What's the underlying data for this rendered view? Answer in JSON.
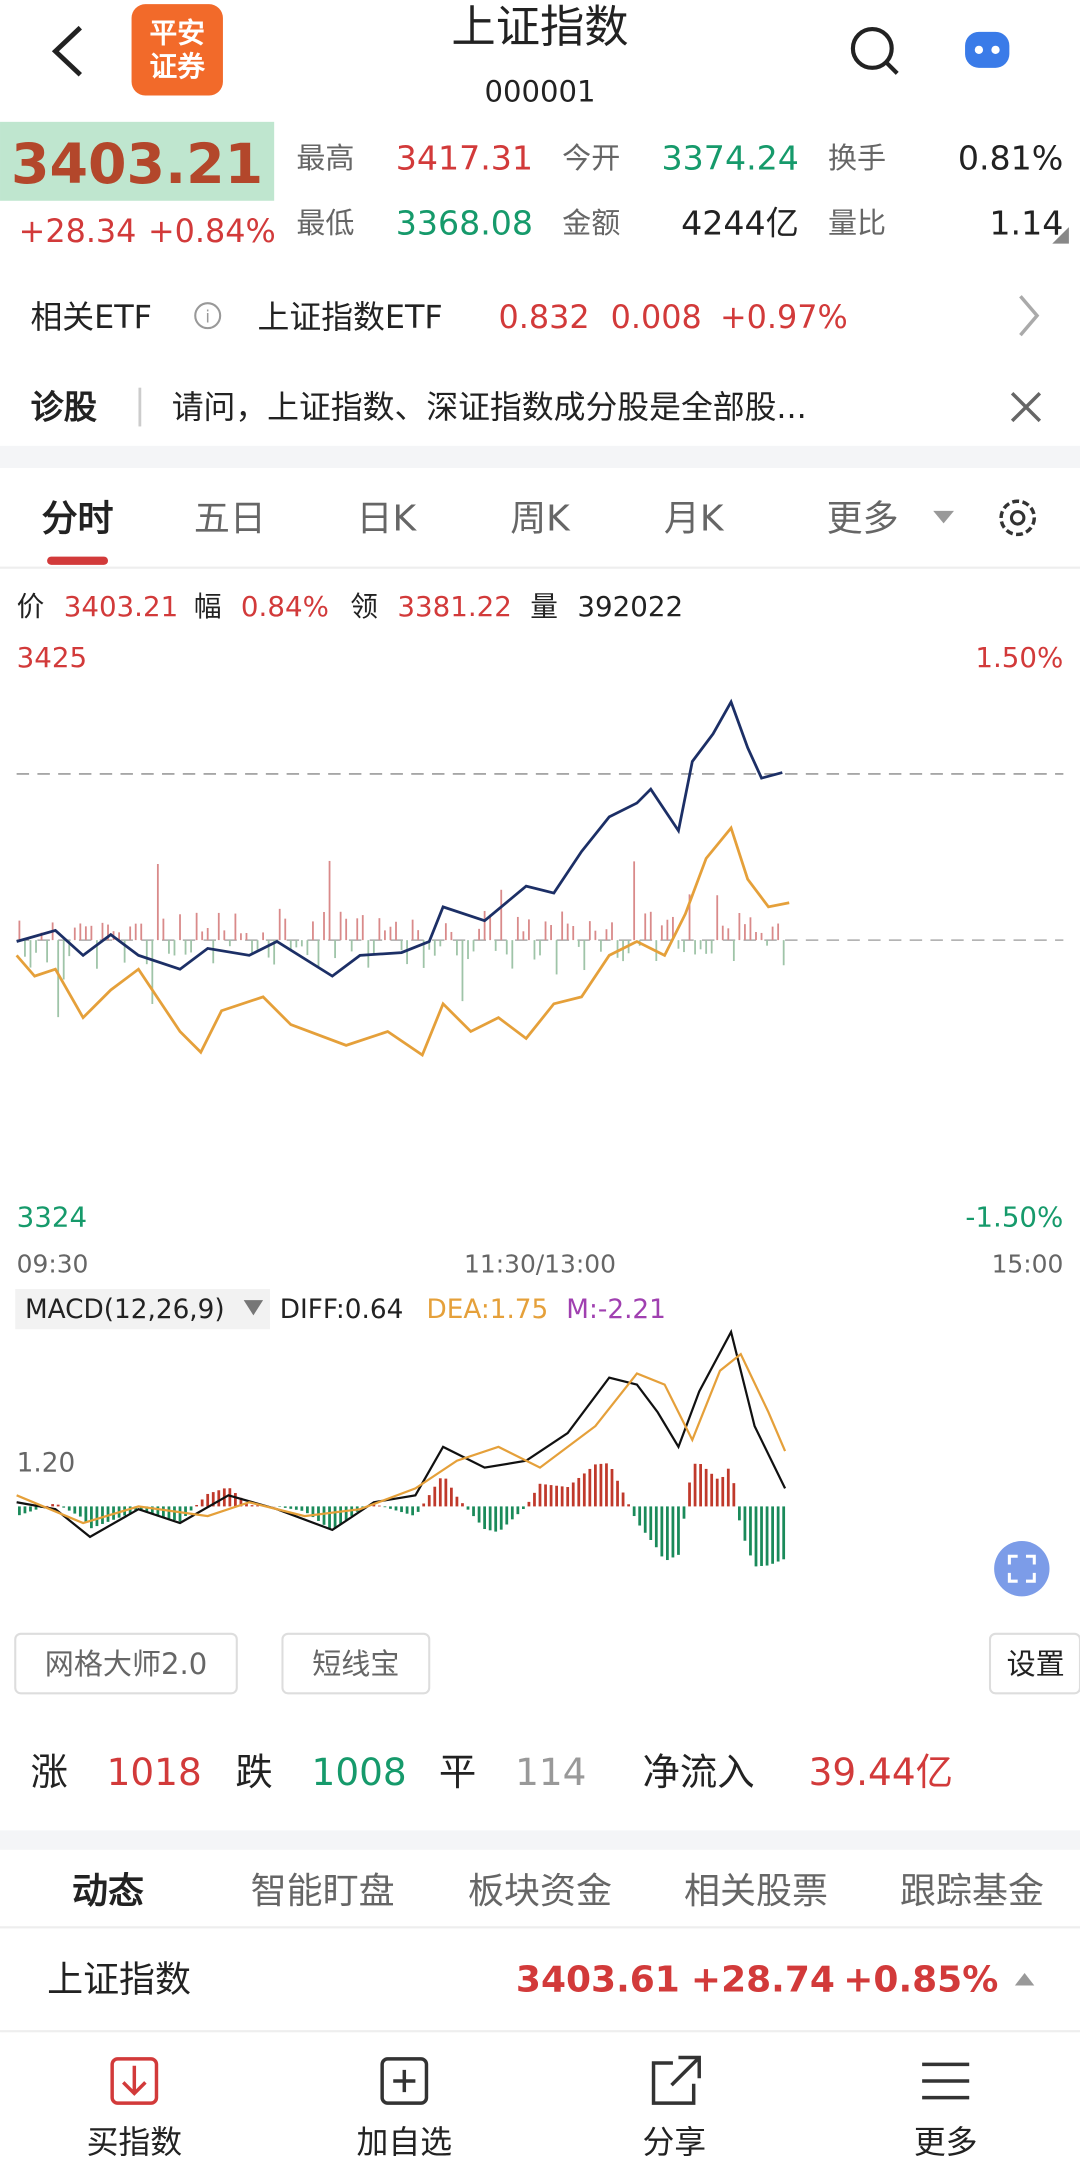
{
  "header": {
    "title": "上证指数",
    "code": "000001",
    "logo": [
      "平安",
      "证券"
    ]
  },
  "quote": {
    "price": "3403.21",
    "change": "+28.34",
    "change_pct": "+0.84%",
    "stats": [
      {
        "label": "最高",
        "value": "3417.31"
      },
      {
        "label": "今开",
        "value": "3374.24"
      },
      {
        "label": "换手",
        "value": "0.81%"
      },
      {
        "label": "最低",
        "value": "3368.08"
      },
      {
        "label": "金额",
        "value": "4244亿"
      },
      {
        "label": "量比",
        "value": "1.14"
      }
    ]
  },
  "etf": {
    "label": "相关ETF",
    "name": "上证指数ETF",
    "price": "0.832",
    "change": "0.008",
    "change_pct": "+0.97%"
  },
  "diagnosis": {
    "label": "诊股",
    "question": "请问，上证指数、深证指数成分股是全部股..."
  },
  "tabs": [
    "分时",
    "五日",
    "日K",
    "周K",
    "月K",
    "更多"
  ],
  "info": [
    {
      "label": "价",
      "value": "3403.21"
    },
    {
      "label": "幅",
      "value": "0.84%"
    },
    {
      "label": "领",
      "value": "3381.22"
    },
    {
      "label": "量",
      "value": "392022"
    }
  ],
  "chart": {
    "y_top": "3425",
    "y_bottom": "3324",
    "pct_top": "1.50%",
    "pct_bottom": "-1.50%",
    "times": [
      "09:30",
      "11:30/13:00",
      "15:00"
    ]
  },
  "macd": {
    "name": "MACD(12,26,9)",
    "diff": "DIFF:0.64",
    "dea": "DEA:1.75",
    "m": "M:-2.21",
    "level": "1.20"
  },
  "tools": [
    "网格大师2.0",
    "短线宝",
    "设置"
  ],
  "breadth": {
    "up_label": "涨",
    "up": "1018",
    "down_label": "跌",
    "down": "1008",
    "flat_label": "平",
    "flat": "114",
    "inflow_label": "净流入",
    "inflow": "39.44亿"
  },
  "news_tabs": [
    "动态",
    "智能盯盘",
    "板块资金",
    "相关股票",
    "跟踪基金"
  ],
  "index_row": {
    "name": "上证指数",
    "price": "3403.61",
    "change": "+28.74",
    "change_pct": "+0.85%"
  },
  "nav": [
    "买指数",
    "加自选",
    "分享",
    "更多"
  ]
}
